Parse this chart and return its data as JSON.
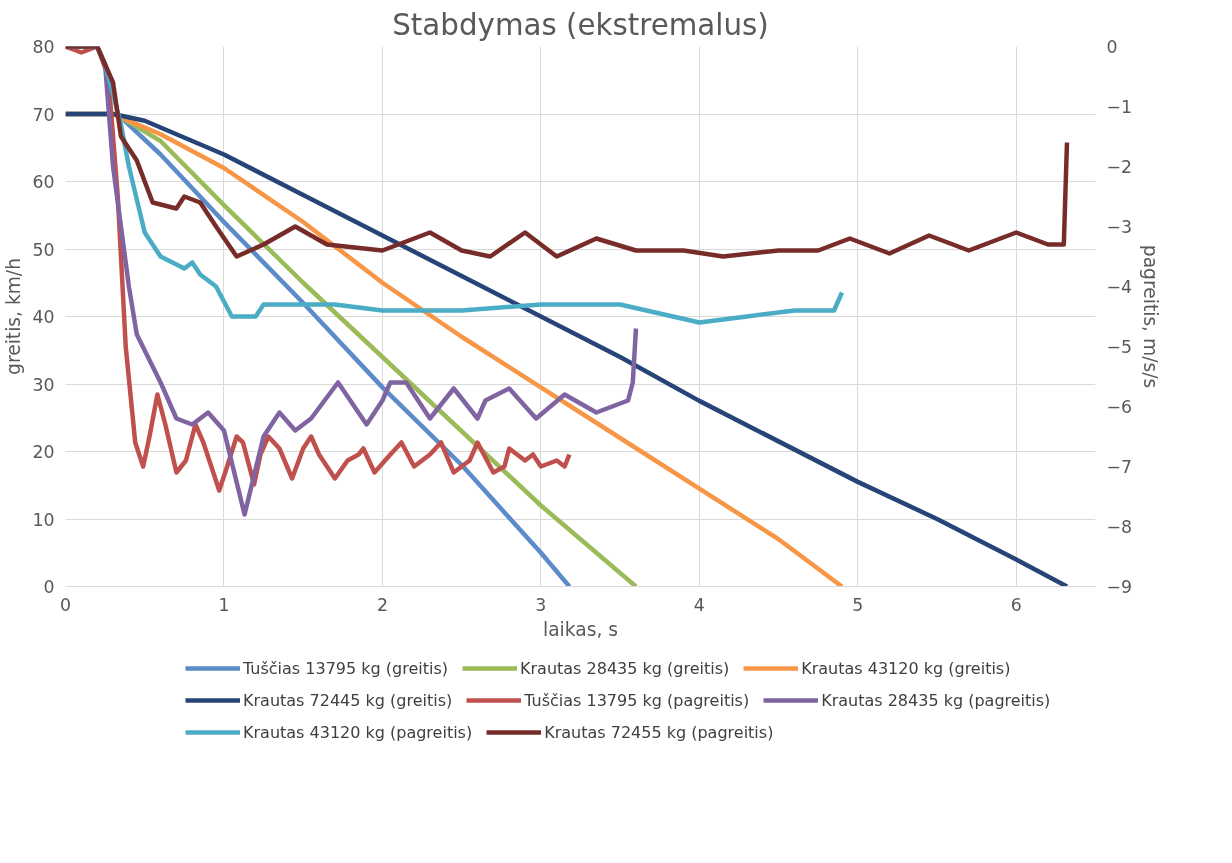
{
  "chart_data": {
    "type": "line",
    "title": "Stabdymas (ekstremalus)",
    "xlabel": "laikas, s",
    "ylabel": "greitis, km/h",
    "y2label": "pagreitis, m/s/s",
    "xlim": [
      0,
      6.5
    ],
    "xticks": [
      0,
      1,
      2,
      3,
      4,
      5,
      6
    ],
    "ylim": [
      0,
      80
    ],
    "yticks": [
      0,
      10,
      20,
      30,
      40,
      50,
      60,
      70,
      80
    ],
    "y2lim": [
      -9,
      0
    ],
    "y2ticks": [
      -9,
      -8,
      -7,
      -6,
      -5,
      -4,
      -3,
      -2,
      -1,
      0
    ],
    "grid": true,
    "legend": "bottom",
    "marker": "none",
    "line_style": "solid",
    "series": [
      {
        "name": "Tuščias 13795 kg (greitis)",
        "color": "#5b8bc9",
        "x": [
          0,
          0.3,
          0.35,
          0.6,
          1,
          1.5,
          2,
          2.5,
          3,
          3.18
        ],
        "values": [
          70,
          70,
          69.5,
          64,
          54,
          42,
          29.5,
          18,
          5,
          0
        ]
      },
      {
        "name": "Krautas 28435 kg (greitis)",
        "color": "#9bbb59",
        "x": [
          0,
          0.3,
          0.35,
          0.6,
          1,
          1.5,
          2,
          2.5,
          3,
          3.6
        ],
        "values": [
          70,
          70,
          69.5,
          66,
          56.5,
          45,
          34,
          23,
          12,
          0
        ]
      },
      {
        "name": "Krautas 43120 kg (greitis)",
        "color": "#f79646",
        "x": [
          0,
          0.3,
          0.35,
          0.6,
          1,
          1.5,
          2,
          2.5,
          3,
          3.5,
          4,
          4.5,
          4.9
        ],
        "values": [
          70,
          70,
          69.5,
          67,
          62,
          54,
          45,
          37,
          29.5,
          22,
          14.5,
          7,
          0
        ]
      },
      {
        "name": "Krautas 72445 kg (greitis)",
        "color": "#264478",
        "x": [
          0,
          0.3,
          0.5,
          1,
          1.5,
          2,
          2.5,
          3,
          3.5,
          4,
          4.5,
          5,
          5.5,
          6,
          6.32
        ],
        "values": [
          70,
          70,
          69,
          64,
          58,
          52,
          46,
          40,
          34,
          27.5,
          21.5,
          15.5,
          10,
          4,
          0
        ]
      },
      {
        "name": "Tuščias 13795 kg (pagreitis)",
        "color": "#c0504d",
        "axis": "y2",
        "x": [
          0,
          0.1,
          0.2,
          0.27,
          0.33,
          0.38,
          0.44,
          0.49,
          0.53,
          0.58,
          0.63,
          0.7,
          0.76,
          0.82,
          0.87,
          0.97,
          1.02,
          1.08,
          1.12,
          1.19,
          1.23,
          1.28,
          1.35,
          1.43,
          1.5,
          1.55,
          1.6,
          1.7,
          1.78,
          1.85,
          1.88,
          1.95,
          2.05,
          2.12,
          2.2,
          2.3,
          2.37,
          2.45,
          2.55,
          2.6,
          2.7,
          2.77,
          2.8,
          2.85,
          2.9,
          2.95,
          3.0,
          3.1,
          3.15,
          3.18
        ],
        "values": [
          0,
          -0.1,
          0,
          -0.5,
          -2.5,
          -5,
          -6.6,
          -7.0,
          -6.5,
          -5.8,
          -6.3,
          -7.1,
          -6.9,
          -6.3,
          -6.6,
          -7.4,
          -7.0,
          -6.5,
          -6.6,
          -7.3,
          -6.8,
          -6.5,
          -6.7,
          -7.2,
          -6.7,
          -6.5,
          -6.8,
          -7.2,
          -6.9,
          -6.8,
          -6.7,
          -7.1,
          -6.8,
          -6.6,
          -7.0,
          -6.8,
          -6.6,
          -7.1,
          -6.9,
          -6.6,
          -7.1,
          -7.0,
          -6.7,
          -6.8,
          -6.9,
          -6.8,
          -7.0,
          -6.9,
          -7.0,
          -6.8
        ]
      },
      {
        "name": "Krautas 28435 kg (pagreitis)",
        "color": "#8064a2",
        "axis": "y2",
        "x": [
          0,
          0.2,
          0.25,
          0.3,
          0.4,
          0.45,
          0.6,
          0.7,
          0.8,
          0.9,
          1.0,
          1.13,
          1.25,
          1.35,
          1.45,
          1.55,
          1.72,
          1.9,
          2.0,
          2.05,
          2.15,
          2.3,
          2.45,
          2.6,
          2.65,
          2.8,
          2.97,
          3.15,
          3.35,
          3.45,
          3.55,
          3.58,
          3.6
        ],
        "values": [
          0,
          0,
          -0.3,
          -2,
          -4,
          -4.8,
          -5.6,
          -6.2,
          -6.3,
          -6.1,
          -6.4,
          -7.8,
          -6.5,
          -6.1,
          -6.4,
          -6.2,
          -5.6,
          -6.3,
          -5.9,
          -5.6,
          -5.6,
          -6.2,
          -5.7,
          -6.2,
          -5.9,
          -5.7,
          -6.2,
          -5.8,
          -6.1,
          -6.0,
          -5.9,
          -5.6,
          -4.7
        ]
      },
      {
        "name": "Krautas 43120 kg (pagreitis)",
        "color": "#4bacc6",
        "axis": "y2",
        "x": [
          0,
          0.2,
          0.25,
          0.35,
          0.4,
          0.5,
          0.6,
          0.75,
          0.8,
          0.85,
          0.95,
          1.05,
          1.2,
          1.25,
          1.5,
          1.7,
          2.0,
          2.5,
          3.0,
          3.5,
          4.0,
          4.3,
          4.6,
          4.85,
          4.9
        ],
        "values": [
          0,
          0,
          -0.3,
          -1.3,
          -2.0,
          -3.1,
          -3.5,
          -3.7,
          -3.6,
          -3.8,
          -4.0,
          -4.5,
          -4.5,
          -4.3,
          -4.3,
          -4.3,
          -4.4,
          -4.4,
          -4.3,
          -4.3,
          -4.6,
          -4.5,
          -4.4,
          -4.4,
          -4.1
        ]
      },
      {
        "name": "Krautas 72455 kg (pagreitis)",
        "color": "#772c2a",
        "axis": "y2",
        "x": [
          0,
          0.2,
          0.3,
          0.35,
          0.45,
          0.55,
          0.7,
          0.75,
          0.85,
          0.95,
          1.08,
          1.25,
          1.45,
          1.65,
          2.0,
          2.3,
          2.5,
          2.68,
          2.9,
          3.1,
          3.35,
          3.6,
          3.9,
          4.15,
          4.5,
          4.75,
          4.95,
          5.2,
          5.45,
          5.7,
          6.0,
          6.2,
          6.3,
          6.32
        ],
        "values": [
          0,
          0,
          -0.6,
          -1.5,
          -1.9,
          -2.6,
          -2.7,
          -2.5,
          -2.6,
          -3.0,
          -3.5,
          -3.3,
          -3.0,
          -3.3,
          -3.4,
          -3.1,
          -3.4,
          -3.5,
          -3.1,
          -3.5,
          -3.2,
          -3.4,
          -3.4,
          -3.5,
          -3.4,
          -3.4,
          -3.2,
          -3.45,
          -3.15,
          -3.4,
          -3.1,
          -3.3,
          -3.3,
          -1.6
        ]
      }
    ]
  }
}
